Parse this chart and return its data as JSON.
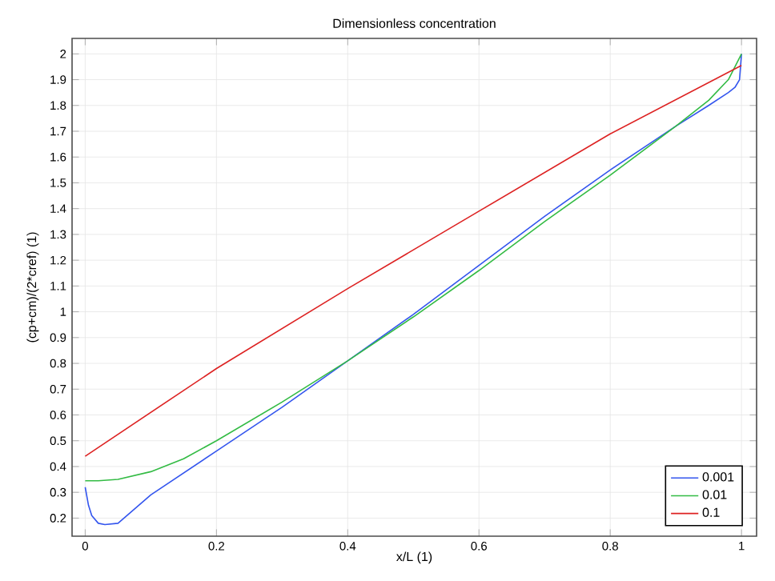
{
  "chart_data": {
    "type": "line",
    "title": "Dimensionless concentration",
    "xlabel": "x/L (1)",
    "ylabel": "(cp+cm)/(2*cref) (1)",
    "xlim": [
      -0.02,
      1.023
    ],
    "ylim": [
      0.13,
      2.06
    ],
    "xticks": [
      0,
      0.2,
      0.4,
      0.6,
      0.8,
      1
    ],
    "yticks": [
      0.2,
      0.3,
      0.4,
      0.5,
      0.6,
      0.7,
      0.8,
      0.9,
      1,
      1.1,
      1.2,
      1.3,
      1.4,
      1.5,
      1.6,
      1.7,
      1.8,
      1.9,
      2
    ],
    "grid": true,
    "legend": "bottom right",
    "marker": "none",
    "line_style": "solid",
    "series": [
      {
        "name": "0.001",
        "color": "#3355ee",
        "x": [
          0,
          0.005,
          0.01,
          0.02,
          0.03,
          0.05,
          0.1,
          0.2,
          0.3,
          0.4,
          0.5,
          0.6,
          0.7,
          0.8,
          0.9,
          0.95,
          0.98,
          0.99,
          0.997,
          1.0
        ],
        "values": [
          0.32,
          0.25,
          0.21,
          0.18,
          0.175,
          0.18,
          0.29,
          0.46,
          0.63,
          0.81,
          0.99,
          1.18,
          1.37,
          1.55,
          1.72,
          1.8,
          1.85,
          1.87,
          1.9,
          2.0
        ]
      },
      {
        "name": "0.01",
        "color": "#33bb44",
        "x": [
          0,
          0.02,
          0.05,
          0.1,
          0.15,
          0.2,
          0.3,
          0.4,
          0.5,
          0.6,
          0.7,
          0.8,
          0.9,
          0.95,
          0.98,
          1.0
        ],
        "values": [
          0.345,
          0.345,
          0.35,
          0.38,
          0.43,
          0.5,
          0.65,
          0.81,
          0.98,
          1.16,
          1.35,
          1.53,
          1.72,
          1.82,
          1.9,
          2.0
        ]
      },
      {
        "name": "0.1",
        "color": "#dd2222",
        "x": [
          0,
          0.2,
          0.4,
          0.6,
          0.8,
          1.0
        ],
        "values": [
          0.44,
          0.78,
          1.09,
          1.39,
          1.69,
          1.955
        ]
      }
    ]
  }
}
